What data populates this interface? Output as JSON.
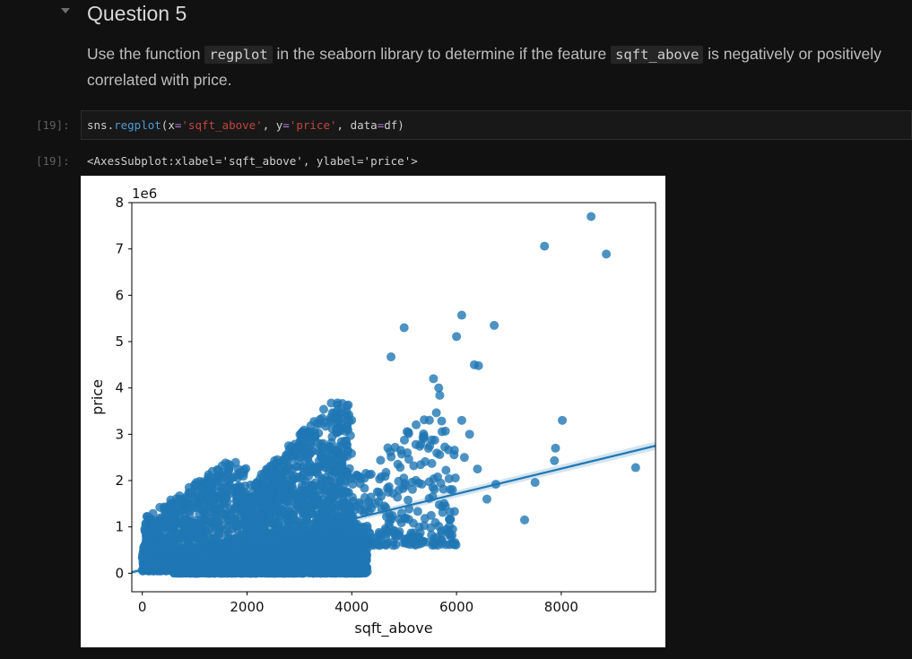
{
  "markdown": {
    "heading": "Question 5",
    "paragraph_parts": [
      "Use the function ",
      "regplot",
      " in the seaborn library to determine if the feature ",
      "sqft_above",
      " is negatively or positively correlated with price."
    ]
  },
  "code_cell": {
    "input_prompt": "[19]:",
    "code_tokens": [
      {
        "t": "sns",
        "c": "name"
      },
      {
        "t": ".",
        "c": "name"
      },
      {
        "t": "regplot",
        "c": "fn"
      },
      {
        "t": "(",
        "c": "name"
      },
      {
        "t": "x",
        "c": "name"
      },
      {
        "t": "=",
        "c": "op"
      },
      {
        "t": "'sqft_above'",
        "c": "str"
      },
      {
        "t": ", ",
        "c": "name"
      },
      {
        "t": "y",
        "c": "name"
      },
      {
        "t": "=",
        "c": "op"
      },
      {
        "t": "'price'",
        "c": "str"
      },
      {
        "t": ", ",
        "c": "name"
      },
      {
        "t": "data",
        "c": "name"
      },
      {
        "t": "=",
        "c": "op"
      },
      {
        "t": "df",
        "c": "name"
      },
      {
        "t": ")",
        "c": "name"
      }
    ],
    "output_prompt": "[19]:",
    "output_text": "<AxesSubplot:xlabel='sqft_above', ylabel='price'>"
  },
  "chart_data": {
    "type": "scatter",
    "xlabel": "sqft_above",
    "ylabel": "price",
    "offset_text": "1e6",
    "xlim": [
      -200,
      9800
    ],
    "ylim": [
      -0.4,
      8.0
    ],
    "xticks": [
      0,
      2000,
      4000,
      6000,
      8000
    ],
    "yticks": [
      0,
      1,
      2,
      3,
      4,
      5,
      6,
      7,
      8
    ],
    "point_color": "#1f77b4",
    "regression_line": {
      "x": [
        -200,
        9800
      ],
      "y": [
        0.02,
        2.75
      ]
    },
    "outliers": [
      {
        "x": 8570,
        "y": 7.7
      },
      {
        "x": 7680,
        "y": 7.06
      },
      {
        "x": 8860,
        "y": 6.89
      },
      {
        "x": 6100,
        "y": 5.57
      },
      {
        "x": 6720,
        "y": 5.35
      },
      {
        "x": 5000,
        "y": 5.3
      },
      {
        "x": 6000,
        "y": 5.11
      },
      {
        "x": 6340,
        "y": 4.5
      },
      {
        "x": 6420,
        "y": 4.48
      },
      {
        "x": 4750,
        "y": 4.67
      },
      {
        "x": 5560,
        "y": 4.2
      },
      {
        "x": 5660,
        "y": 4.0
      },
      {
        "x": 5680,
        "y": 3.84
      },
      {
        "x": 8020,
        "y": 3.3
      },
      {
        "x": 7890,
        "y": 2.7
      },
      {
        "x": 7870,
        "y": 2.43
      },
      {
        "x": 9420,
        "y": 2.28
      },
      {
        "x": 7500,
        "y": 1.96
      },
      {
        "x": 7300,
        "y": 1.15
      },
      {
        "x": 6580,
        "y": 1.6
      },
      {
        "x": 6750,
        "y": 1.92
      },
      {
        "x": 6400,
        "y": 2.25
      },
      {
        "x": 6250,
        "y": 3.0
      },
      {
        "x": 6100,
        "y": 3.3
      },
      {
        "x": 6150,
        "y": 2.5
      }
    ],
    "cloud_regions": [
      {
        "x0": 0,
        "x1": 2000,
        "y0": 0.05,
        "y1": 2.4,
        "n": 1100
      },
      {
        "x0": 2000,
        "x1": 4000,
        "y0": 0.1,
        "y1": 3.7,
        "n": 1400
      },
      {
        "x0": 4000,
        "x1": 6000,
        "y0": 0.6,
        "y1": 3.6,
        "n": 260
      },
      {
        "x0": 600,
        "x1": 4300,
        "y0": 0.0,
        "y1": 1.0,
        "n": 2400
      }
    ]
  }
}
